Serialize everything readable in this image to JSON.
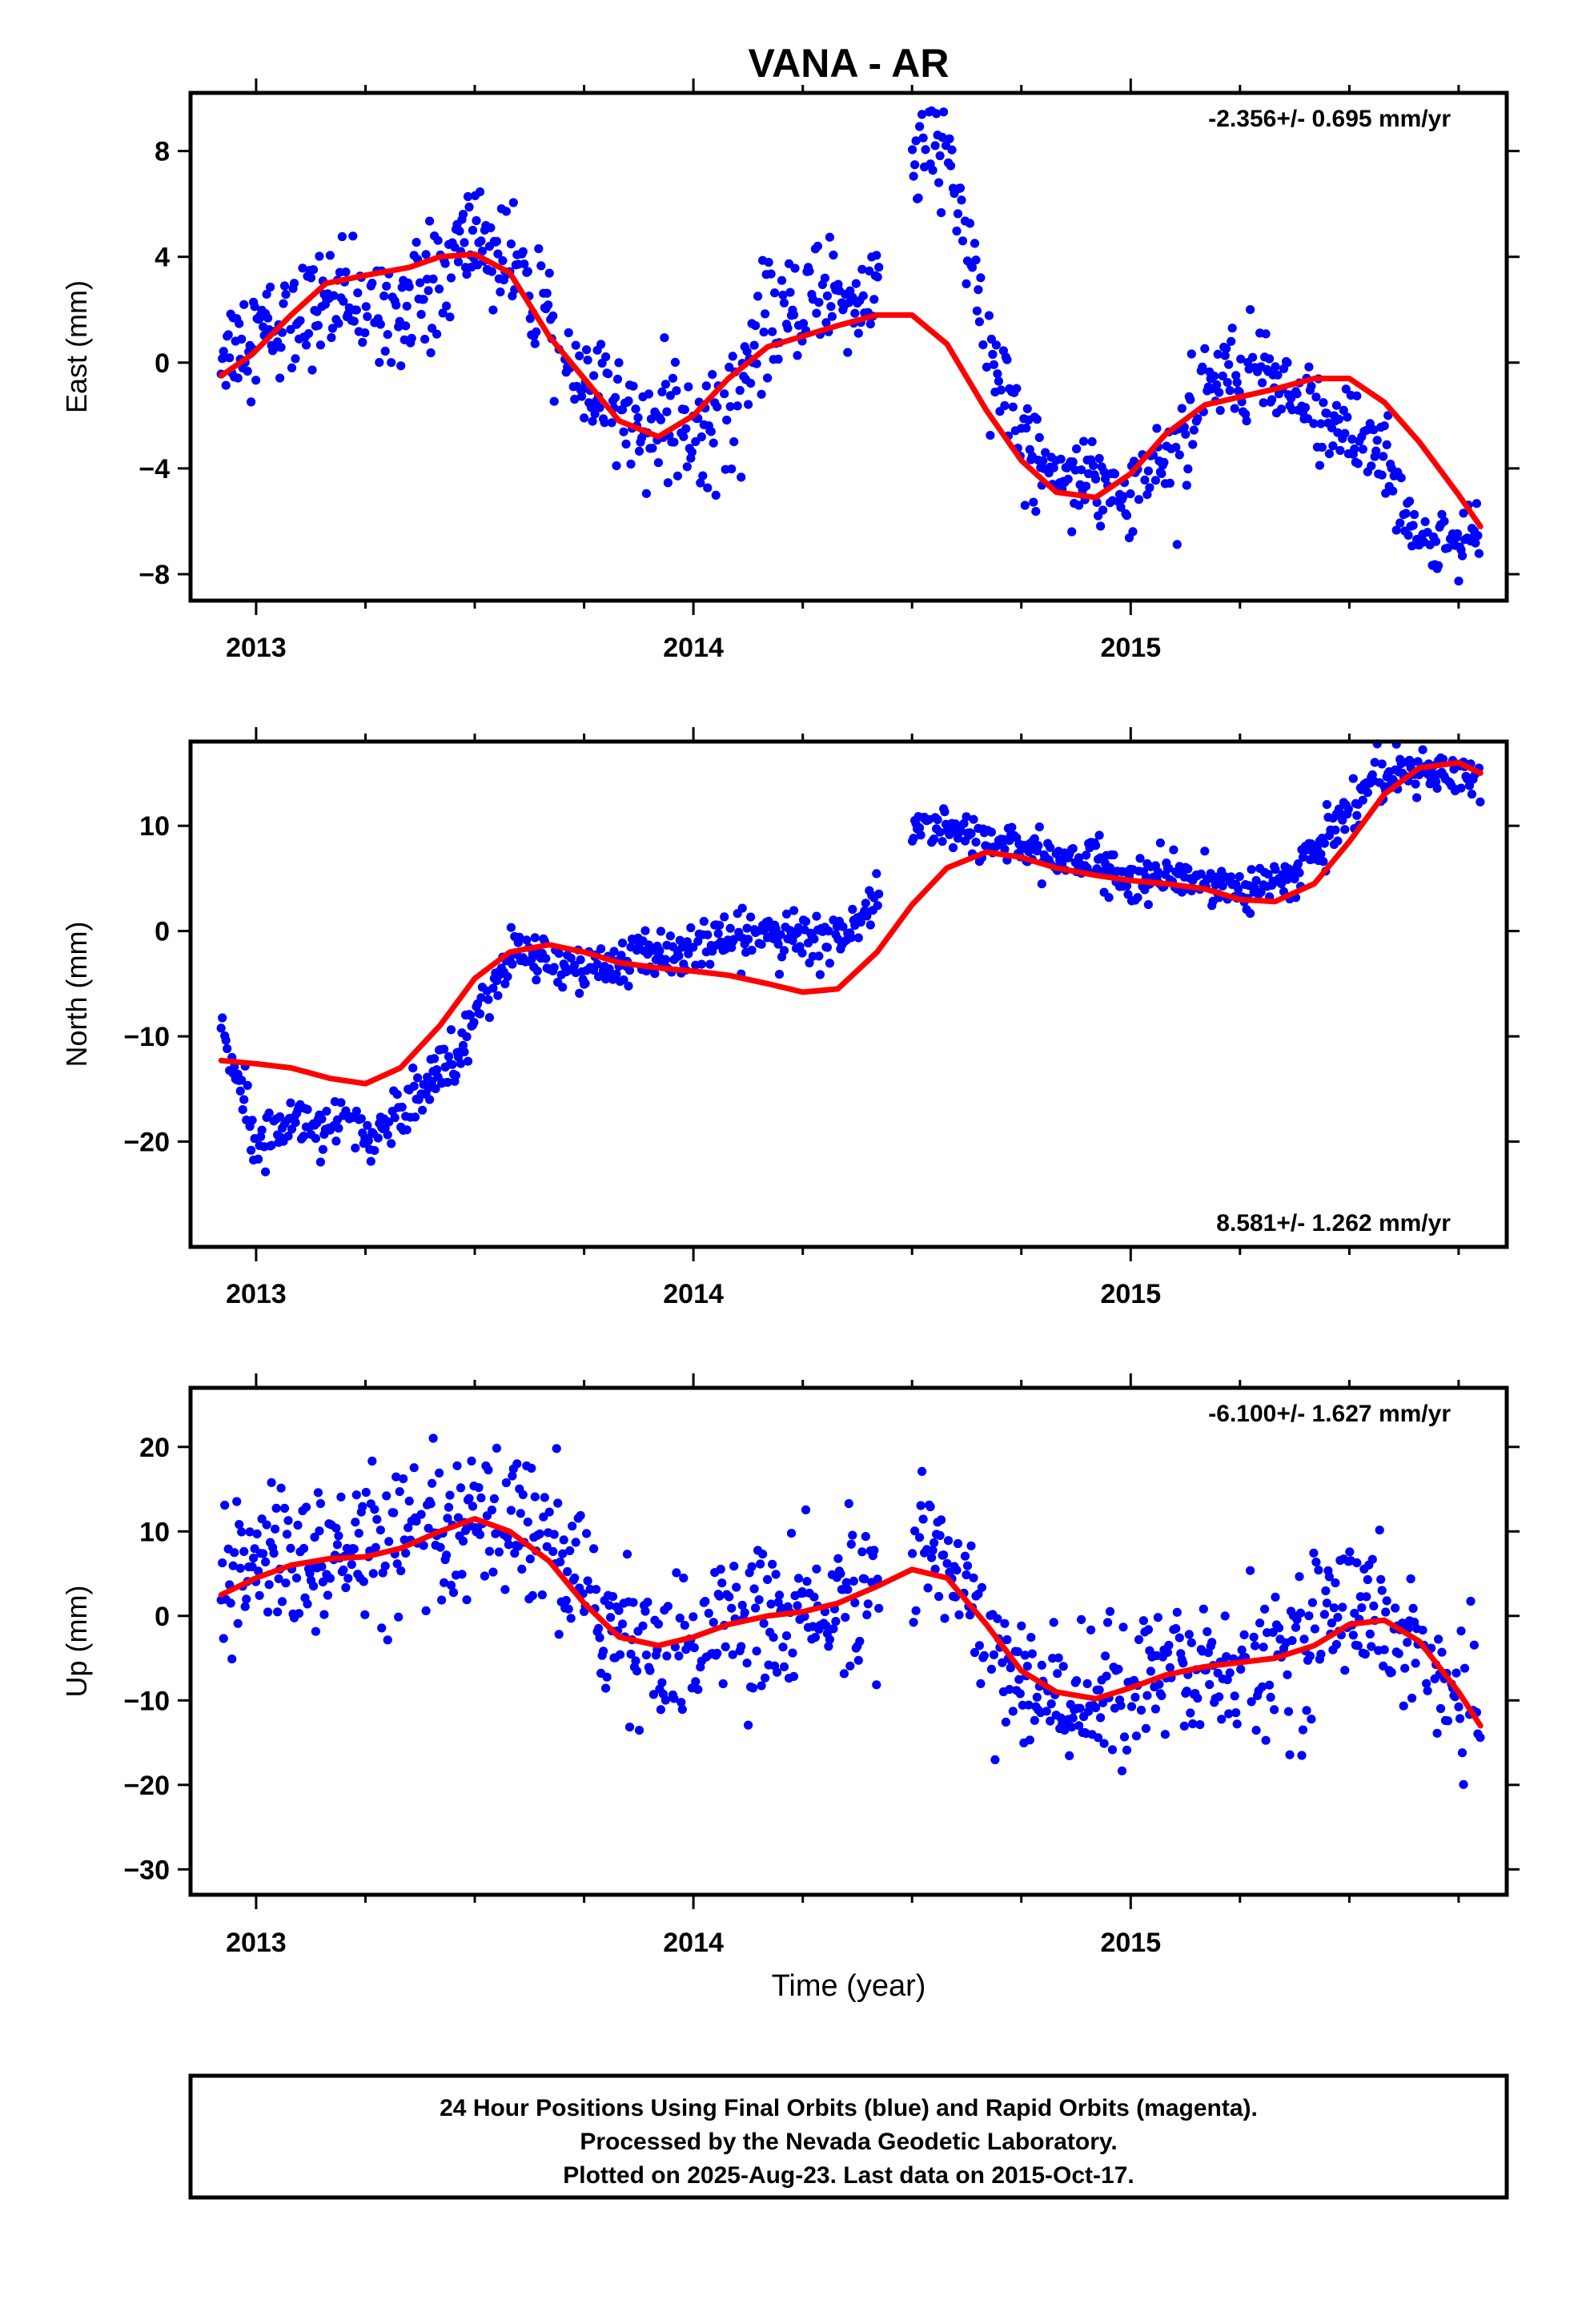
{
  "title": "VANA - AR",
  "xlabel": "Time (year)",
  "colors": {
    "points": "#0000ff",
    "fit": "#ff0000",
    "frame": "#000000"
  },
  "caption": {
    "line1": "24 Hour Positions Using Final Orbits (blue) and Rapid Orbits (magenta).",
    "line2": "Processed by the Nevada Geodetic Laboratory.",
    "line3": "Plotted on 2025-Aug-23. Last data on 2015-Oct-17."
  },
  "chart_data": [
    {
      "type": "scatter",
      "panel": "east",
      "ylabel": "East (mm)",
      "rate": "-2.356+/- 0.695 mm/yr",
      "xlim": [
        2012.85,
        2015.86
      ],
      "ylim": [
        -9.0,
        10.2
      ],
      "xticks": [
        2013,
        2014,
        2015
      ],
      "xtick_labels": [
        "2013",
        "2014",
        "2015"
      ],
      "yticks": [
        -8,
        -4,
        0,
        4,
        8
      ],
      "ytick_labels": [
        "−8",
        "−4",
        "0",
        "4",
        "8"
      ],
      "series": [
        {
          "points_mean": [
            [
              2012.92,
              0.5
            ],
            [
              2013.0,
              1.2
            ],
            [
              2013.08,
              1.5
            ],
            [
              2013.17,
              2.4
            ],
            [
              2013.25,
              2.0
            ],
            [
              2013.33,
              2.3
            ],
            [
              2013.42,
              3.0
            ],
            [
              2013.5,
              5.0
            ],
            [
              2013.58,
              3.6
            ],
            [
              2013.67,
              1.5
            ],
            [
              2013.75,
              -1.3
            ],
            [
              2013.83,
              -1.5
            ],
            [
              2013.92,
              -2.3
            ],
            [
              2014.0,
              -2.8
            ],
            [
              2014.08,
              -1.6
            ],
            [
              2014.17,
              1.3
            ],
            [
              2014.25,
              2.3
            ],
            [
              2014.33,
              2.8
            ],
            [
              2014.4,
              2.3
            ],
            [
              2014.52,
              8.0
            ],
            [
              2014.58,
              8.3
            ],
            [
              2014.67,
              0.5
            ],
            [
              2014.75,
              -2.8
            ],
            [
              2014.83,
              -4.0
            ],
            [
              2014.92,
              -4.3
            ],
            [
              2015.0,
              -5.0
            ],
            [
              2015.08,
              -3.5
            ],
            [
              2015.17,
              -1.3
            ],
            [
              2015.25,
              0.0
            ],
            [
              2015.33,
              -1.0
            ],
            [
              2015.42,
              -2.0
            ],
            [
              2015.5,
              -2.6
            ],
            [
              2015.58,
              -3.5
            ],
            [
              2015.66,
              -6.8
            ],
            [
              2015.75,
              -7.0
            ],
            [
              2015.8,
              -6.5
            ]
          ],
          "point_spread": [
            0.9,
            1.0,
            1.0,
            1.0,
            1.0,
            1.0,
            1.1,
            1.1,
            1.0,
            1.0,
            1.0,
            1.0,
            1.0,
            1.2,
            1.1,
            1.1,
            1.0,
            1.1,
            1.1,
            0.9,
            0.9,
            1.1,
            1.0,
            0.8,
            0.8,
            0.8,
            1.0,
            1.0,
            0.9,
            0.9,
            0.9,
            0.9,
            0.9,
            0.6,
            0.7,
            0.8
          ]
        },
        {
          "name": "fit",
          "x": [
            2012.92,
            2012.99,
            2013.08,
            2013.16,
            2013.25,
            2013.35,
            2013.42,
            2013.5,
            2013.58,
            2013.67,
            2013.75,
            2013.83,
            2013.92,
            2014.0,
            2014.08,
            2014.17,
            2014.25,
            2014.33,
            2014.42,
            2014.5,
            2014.58,
            2014.67,
            2014.75,
            2014.83,
            2014.92,
            2015.0,
            2015.08,
            2015.17,
            2015.25,
            2015.33,
            2015.42,
            2015.5,
            2015.58,
            2015.66,
            2015.75,
            2015.8
          ],
          "y": [
            -0.5,
            0.3,
            1.8,
            3.0,
            3.3,
            3.6,
            4.0,
            4.1,
            3.4,
            1.0,
            -0.6,
            -2.2,
            -2.8,
            -2.0,
            -0.6,
            0.6,
            1.0,
            1.4,
            1.8,
            1.8,
            0.7,
            -1.8,
            -3.7,
            -4.9,
            -5.1,
            -4.2,
            -2.7,
            -1.6,
            -1.3,
            -1.0,
            -0.6,
            -0.6,
            -1.5,
            -3.0,
            -5.0,
            -6.2
          ]
        }
      ]
    },
    {
      "type": "scatter",
      "panel": "north",
      "ylabel": "North (mm)",
      "rate": "8.581+/- 1.262 mm/yr",
      "xlim": [
        2012.85,
        2015.86
      ],
      "ylim": [
        -30.0,
        18.0
      ],
      "xticks": [
        2013,
        2014,
        2015
      ],
      "xtick_labels": [
        "2013",
        "2014",
        "2015"
      ],
      "yticks": [
        -20,
        -10,
        0,
        10
      ],
      "ytick_labels": [
        "−20",
        "−10",
        "0",
        "10"
      ],
      "series": [
        {
          "points_mean": [
            [
              2012.92,
              -8.5
            ],
            [
              2013.0,
              -19.0
            ],
            [
              2013.08,
              -18.0
            ],
            [
              2013.17,
              -18.5
            ],
            [
              2013.25,
              -20.0
            ],
            [
              2013.33,
              -17.0
            ],
            [
              2013.42,
              -13.5
            ],
            [
              2013.5,
              -8.5
            ],
            [
              2013.58,
              -2.0
            ],
            [
              2013.67,
              -2.8
            ],
            [
              2013.75,
              -4.0
            ],
            [
              2013.83,
              -3.0
            ],
            [
              2013.92,
              -2.0
            ],
            [
              2014.0,
              -1.5
            ],
            [
              2014.08,
              -1.0
            ],
            [
              2014.17,
              0.0
            ],
            [
              2014.25,
              -1.0
            ],
            [
              2014.33,
              -1.0
            ],
            [
              2014.4,
              1.5
            ],
            [
              2014.52,
              10.0
            ],
            [
              2014.58,
              10.0
            ],
            [
              2014.67,
              8.5
            ],
            [
              2014.75,
              8.0
            ],
            [
              2014.83,
              7.0
            ],
            [
              2014.92,
              6.5
            ],
            [
              2015.0,
              4.5
            ],
            [
              2015.08,
              5.0
            ],
            [
              2015.17,
              5.0
            ],
            [
              2015.25,
              4.0
            ],
            [
              2015.33,
              4.5
            ],
            [
              2015.42,
              7.0
            ],
            [
              2015.5,
              12.0
            ],
            [
              2015.58,
              15.0
            ],
            [
              2015.66,
              15.0
            ],
            [
              2015.75,
              14.5
            ],
            [
              2015.8,
              14.5
            ]
          ],
          "point_spread": [
            1.2,
            1.2,
            1.3,
            1.3,
            1.3,
            1.3,
            1.3,
            1.3,
            1.1,
            1.2,
            1.2,
            1.1,
            1.1,
            1.1,
            1.1,
            1.2,
            1.2,
            1.2,
            1.1,
            0.9,
            0.9,
            1.0,
            1.0,
            1.0,
            1.0,
            1.2,
            1.0,
            1.0,
            1.0,
            1.0,
            1.0,
            1.3,
            1.1,
            1.0,
            1.0,
            1.0
          ]
        },
        {
          "name": "fit",
          "x": [
            2012.92,
            2013.0,
            2013.08,
            2013.17,
            2013.25,
            2013.33,
            2013.42,
            2013.5,
            2013.58,
            2013.67,
            2013.75,
            2013.83,
            2013.92,
            2014.0,
            2014.08,
            2014.17,
            2014.25,
            2014.33,
            2014.42,
            2014.5,
            2014.58,
            2014.67,
            2014.75,
            2014.83,
            2014.92,
            2015.0,
            2015.08,
            2015.17,
            2015.25,
            2015.33,
            2015.42,
            2015.5,
            2015.58,
            2015.66,
            2015.75,
            2015.8
          ],
          "y": [
            -12.3,
            -12.6,
            -13.0,
            -14.0,
            -14.5,
            -13.0,
            -9.0,
            -4.5,
            -2.0,
            -1.3,
            -2.0,
            -3.0,
            -3.5,
            -3.8,
            -4.2,
            -5.0,
            -5.8,
            -5.5,
            -2.0,
            2.5,
            6.0,
            7.5,
            7.0,
            6.0,
            5.3,
            4.8,
            4.5,
            4.0,
            3.0,
            2.8,
            4.5,
            8.5,
            13.0,
            15.5,
            16.0,
            15.0
          ]
        }
      ]
    },
    {
      "type": "scatter",
      "panel": "up",
      "ylabel": "Up (mm)",
      "rate": "-6.100+/- 1.627 mm/yr",
      "xlim": [
        2012.85,
        2015.86
      ],
      "ylim": [
        -33.0,
        27.0
      ],
      "xticks": [
        2013,
        2014,
        2015
      ],
      "xtick_labels": [
        "2013",
        "2014",
        "2015"
      ],
      "yticks": [
        -30,
        -20,
        -10,
        0,
        10,
        20
      ],
      "ytick_labels": [
        "−30",
        "−20",
        "−10",
        "0",
        "10",
        "20"
      ],
      "series": [
        {
          "points_mean": [
            [
              2012.92,
              2.0
            ],
            [
              2013.0,
              7.0
            ],
            [
              2013.08,
              7.0
            ],
            [
              2013.17,
              6.0
            ],
            [
              2013.25,
              8.0
            ],
            [
              2013.33,
              9.0
            ],
            [
              2013.42,
              8.0
            ],
            [
              2013.5,
              10.0
            ],
            [
              2013.58,
              11.0
            ],
            [
              2013.67,
              8.0
            ],
            [
              2013.75,
              3.0
            ],
            [
              2013.83,
              -2.0
            ],
            [
              2013.92,
              -3.0
            ],
            [
              2014.0,
              -4.0
            ],
            [
              2014.08,
              -2.0
            ],
            [
              2014.17,
              0.0
            ],
            [
              2014.25,
              0.0
            ],
            [
              2014.33,
              2.0
            ],
            [
              2014.4,
              2.0
            ],
            [
              2014.52,
              8.0
            ],
            [
              2014.58,
              7.0
            ],
            [
              2014.67,
              -2.0
            ],
            [
              2014.75,
              -8.0
            ],
            [
              2014.83,
              -10.0
            ],
            [
              2014.92,
              -10.0
            ],
            [
              2015.0,
              -8.0
            ],
            [
              2015.08,
              -7.0
            ],
            [
              2015.17,
              -6.0
            ],
            [
              2015.25,
              -6.0
            ],
            [
              2015.33,
              -5.0
            ],
            [
              2015.42,
              -2.0
            ],
            [
              2015.5,
              2.0
            ],
            [
              2015.58,
              0.0
            ],
            [
              2015.66,
              -4.0
            ],
            [
              2015.75,
              -10.0
            ],
            [
              2015.8,
              -13.0
            ]
          ],
          "point_spread": [
            4.0,
            4.5,
            4.5,
            4.5,
            4.5,
            4.5,
            4.5,
            4.0,
            4.0,
            4.0,
            4.5,
            4.5,
            4.5,
            4.5,
            4.5,
            4.5,
            4.5,
            4.5,
            4.5,
            3.5,
            3.5,
            4.0,
            4.0,
            3.5,
            3.5,
            4.5,
            4.5,
            4.5,
            4.5,
            4.5,
            4.5,
            4.5,
            4.0,
            4.0,
            3.5,
            3.5
          ]
        },
        {
          "name": "fit",
          "x": [
            2012.92,
            2013.0,
            2013.08,
            2013.17,
            2013.25,
            2013.33,
            2013.42,
            2013.5,
            2013.58,
            2013.67,
            2013.75,
            2013.83,
            2013.92,
            2014.0,
            2014.08,
            2014.17,
            2014.25,
            2014.33,
            2014.42,
            2014.5,
            2014.58,
            2014.67,
            2014.75,
            2014.83,
            2014.92,
            2015.0,
            2015.08,
            2015.17,
            2015.25,
            2015.33,
            2015.42,
            2015.5,
            2015.58,
            2015.66,
            2015.75,
            2015.8
          ],
          "y": [
            2.5,
            4.5,
            6.0,
            6.8,
            7.0,
            8.0,
            10.0,
            11.5,
            10.0,
            6.5,
            1.5,
            -2.5,
            -3.5,
            -2.5,
            -1.0,
            0.0,
            0.5,
            1.5,
            3.5,
            5.5,
            4.5,
            -1.0,
            -6.5,
            -9.0,
            -9.8,
            -8.5,
            -7.0,
            -6.0,
            -5.5,
            -5.0,
            -3.5,
            -1.0,
            -0.5,
            -3.0,
            -9.0,
            -13.0
          ]
        }
      ]
    }
  ]
}
